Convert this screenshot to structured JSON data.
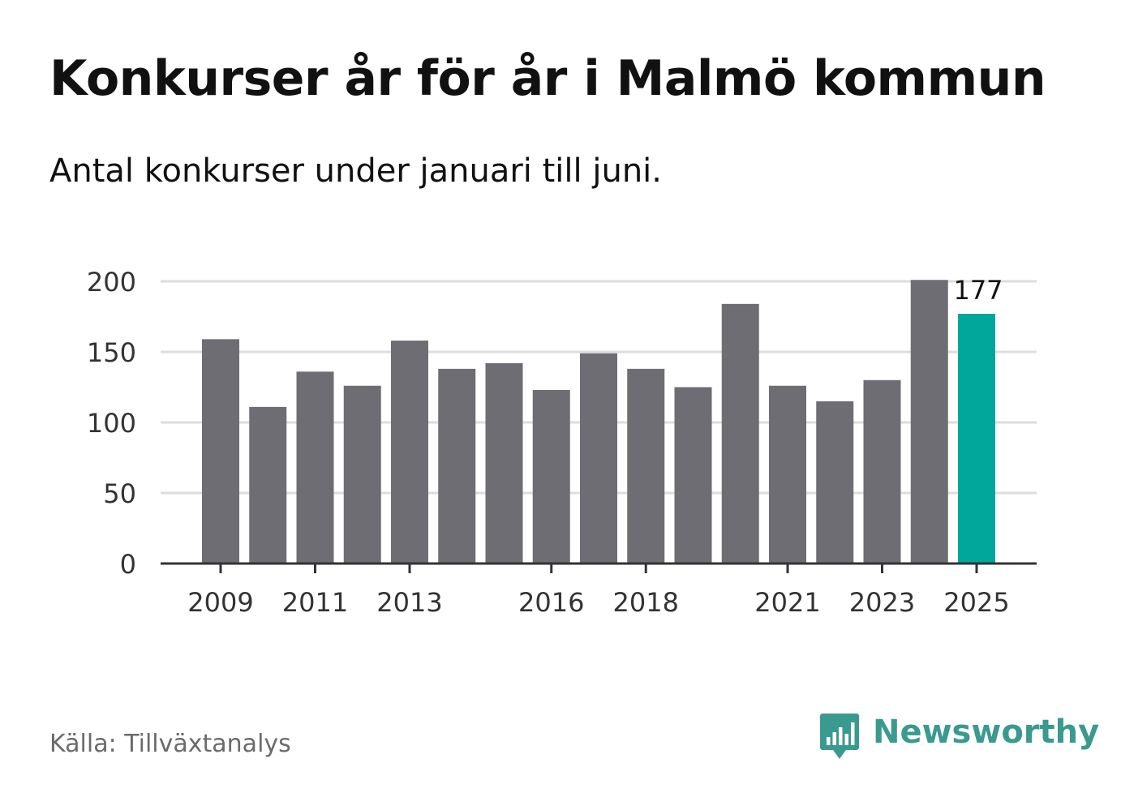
{
  "header": {
    "title": "Konkurser år för år i Malmö kommun",
    "subtitle": "Antal konkurser under januari till juni."
  },
  "footer": {
    "source": "Källa: Tillväxtanalys",
    "brand_name": "Newsworthy",
    "brand_icon": "bar-chart-speech-bubble-icon"
  },
  "colors": {
    "bar": "#6e6d73",
    "highlight": "#00a79a",
    "grid": "#dddddd",
    "axis": "#333333",
    "brand": "#3a9a8f"
  },
  "chart_data": {
    "type": "bar",
    "categories": [
      "2009",
      "2010",
      "2011",
      "2012",
      "2013",
      "2014",
      "2015",
      "2016",
      "2017",
      "2018",
      "2019",
      "2020",
      "2021",
      "2022",
      "2023",
      "2024",
      "2025"
    ],
    "values": [
      159,
      111,
      136,
      126,
      158,
      138,
      142,
      123,
      149,
      138,
      125,
      184,
      126,
      115,
      130,
      201,
      177
    ],
    "tick_labels": [
      "2009",
      "2011",
      "2013",
      "2016",
      "2018",
      "2021",
      "2023",
      "2025"
    ],
    "y_ticks": [
      0,
      50,
      100,
      150,
      200
    ],
    "ylim": [
      0,
      200
    ],
    "highlight_index": 16,
    "highlight_label": "177",
    "grid": true,
    "title": "Konkurser år för år i Malmö kommun",
    "subtitle": "Antal konkurser under januari till juni.",
    "xlabel": "",
    "ylabel": ""
  }
}
